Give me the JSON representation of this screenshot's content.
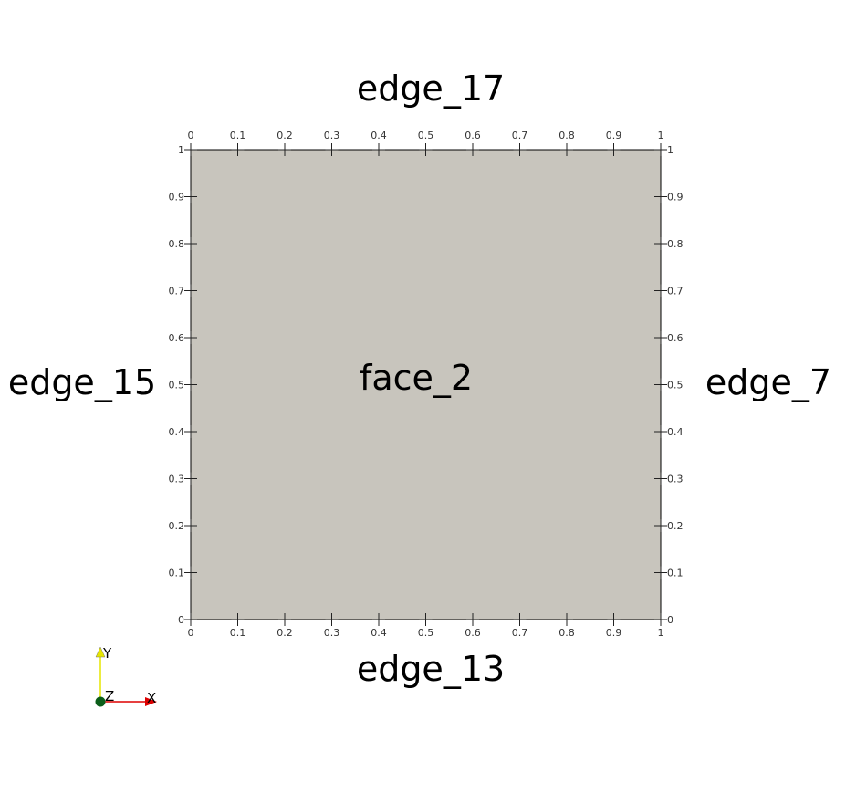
{
  "labels": {
    "top": "edge_17",
    "bottom": "edge_13",
    "left": "edge_15",
    "right": "edge_7",
    "center": "face_2"
  },
  "ticks": [
    "0",
    "0.1",
    "0.2",
    "0.3",
    "0.4",
    "0.5",
    "0.6",
    "0.7",
    "0.8",
    "0.9",
    "1"
  ],
  "tick_values": [
    0,
    0.1,
    0.2,
    0.3,
    0.4,
    0.5,
    0.6,
    0.7,
    0.8,
    0.9,
    1
  ],
  "axes_triad": {
    "x": "X",
    "y": "Y",
    "z": "Z"
  },
  "colors": {
    "face": "#c8c5bd",
    "x_axis": "#dd0000",
    "y_axis": "#e6e600",
    "z_axis": "#0b5e1a",
    "edge": "#000000"
  }
}
